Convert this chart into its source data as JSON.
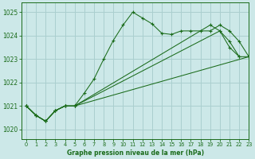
{
  "title": "Graphe pression niveau de la mer (hPa)",
  "bg_color": "#cce8e8",
  "grid_color": "#aacfcf",
  "line_color": "#1a6b1a",
  "xlim": [
    -0.5,
    23
  ],
  "ylim": [
    1019.6,
    1025.4
  ],
  "yticks": [
    1020,
    1021,
    1022,
    1023,
    1024,
    1025
  ],
  "xticks": [
    0,
    1,
    2,
    3,
    4,
    5,
    6,
    7,
    8,
    9,
    10,
    11,
    12,
    13,
    14,
    15,
    16,
    17,
    18,
    19,
    20,
    21,
    22,
    23
  ],
  "series": [
    {
      "x": [
        0,
        1,
        2,
        3,
        4,
        5,
        6,
        7,
        8,
        9,
        10,
        11,
        12,
        13,
        14,
        15,
        16,
        17,
        18,
        19,
        20,
        21,
        22,
        23
      ],
      "y": [
        1021.0,
        1020.6,
        1020.35,
        1020.8,
        1021.0,
        1021.0,
        1021.55,
        1022.15,
        1023.0,
        1023.8,
        1024.45,
        1025.0,
        1024.75,
        1024.5,
        1024.1,
        1024.05,
        1024.2,
        1024.2,
        1024.2,
        1024.2,
        1024.45,
        1024.2,
        1023.75,
        1023.1
      ]
    },
    {
      "x": [
        0,
        1,
        2,
        3,
        4,
        5,
        19,
        20,
        21,
        22,
        23
      ],
      "y": [
        1021.0,
        1020.6,
        1020.35,
        1020.8,
        1021.0,
        1021.0,
        1024.45,
        1024.2,
        1023.75,
        1023.1,
        1023.1
      ]
    },
    {
      "x": [
        0,
        1,
        2,
        3,
        4,
        5,
        20,
        21,
        22
      ],
      "y": [
        1021.0,
        1020.6,
        1020.35,
        1020.8,
        1021.0,
        1021.0,
        1024.2,
        1023.5,
        1023.1
      ]
    },
    {
      "x": [
        0,
        1,
        2,
        3,
        4,
        5,
        23
      ],
      "y": [
        1021.0,
        1020.6,
        1020.35,
        1020.8,
        1021.0,
        1021.0,
        1023.1
      ]
    }
  ]
}
